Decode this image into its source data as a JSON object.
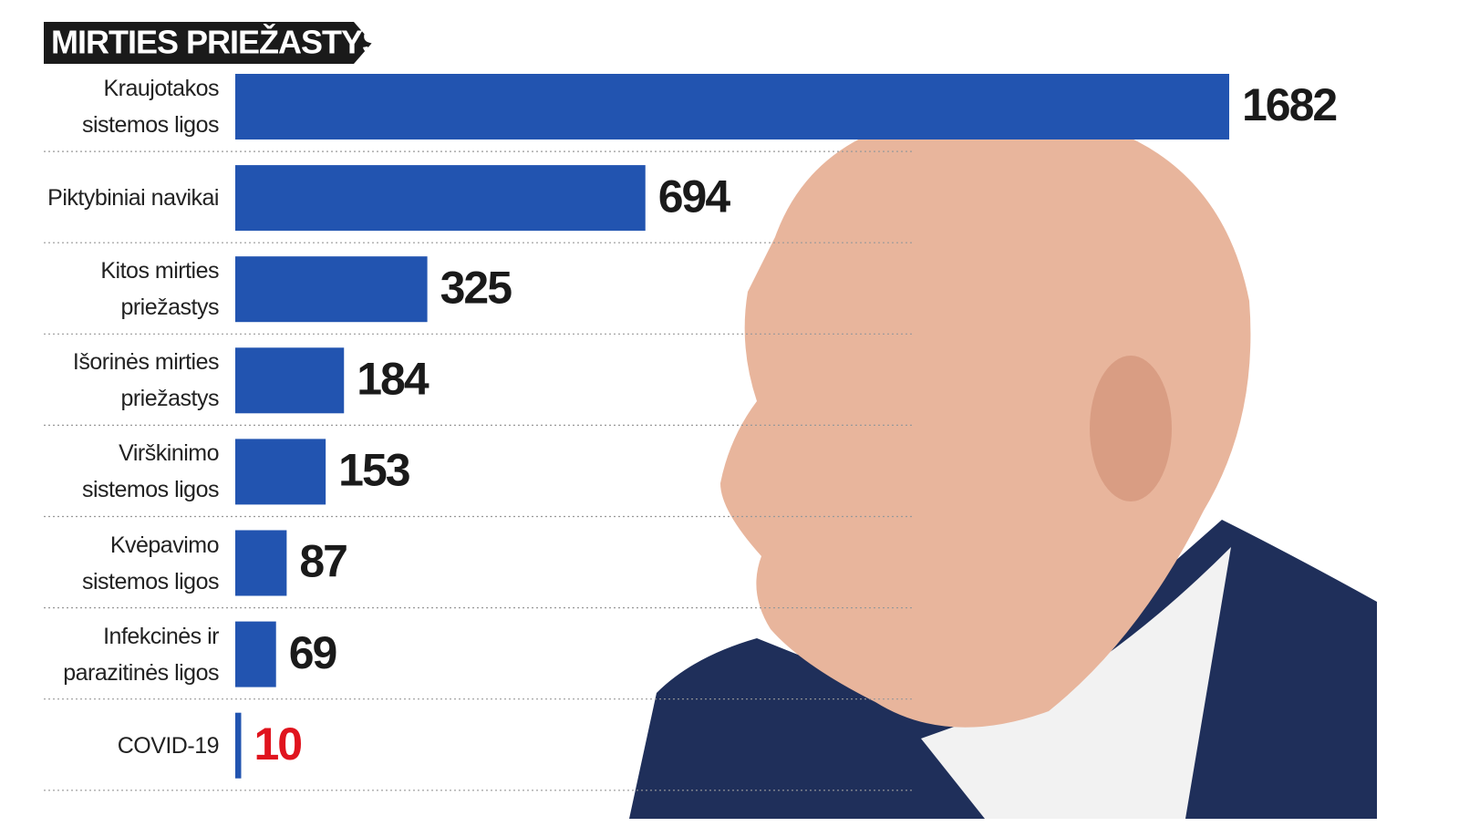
{
  "chart_data": {
    "type": "bar",
    "orientation": "horizontal",
    "title": "MIRTIES PRIEŽASTYS",
    "categories": [
      "Kraujotakos sistemos ligos",
      "Piktybiniai navikai",
      "Kitos mirties priežastys",
      "Išorinės mirties priežastys",
      "Virškinimo sistemos ligos",
      "Kvėpavimo sistemos ligos",
      "Infekcinės ir parazitinės ligos",
      "COVID-19"
    ],
    "values": [
      1682,
      694,
      325,
      184,
      153,
      87,
      69,
      10
    ],
    "color": "#2254b0",
    "label_colors": [
      "#1a1a1a",
      "#1a1a1a",
      "#1a1a1a",
      "#1a1a1a",
      "#1a1a1a",
      "#1a1a1a",
      "#1a1a1a",
      "#e0141e"
    ]
  }
}
